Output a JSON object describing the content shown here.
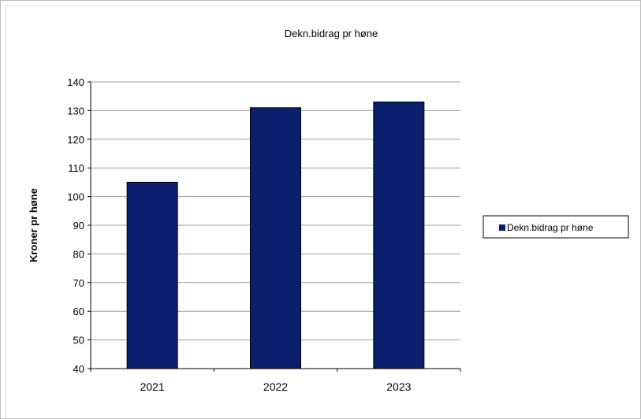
{
  "chart_data": {
    "type": "bar",
    "title": "Dekn.bidrag pr høne",
    "xlabel": "",
    "ylabel": "Kroner pr høne",
    "categories": [
      "2021",
      "2022",
      "2023"
    ],
    "series": [
      {
        "name": "Dekn.bidrag pr høne",
        "values": [
          105,
          131,
          133
        ]
      }
    ],
    "ylim": [
      40,
      140
    ],
    "yticks": [
      40,
      50,
      60,
      70,
      80,
      90,
      100,
      110,
      120,
      130,
      140
    ],
    "grid": true,
    "legend_position": "right",
    "colors": {
      "bar": "#0c1f6e",
      "bar_edge": "#000000",
      "grid": "#9e9e9e"
    }
  }
}
